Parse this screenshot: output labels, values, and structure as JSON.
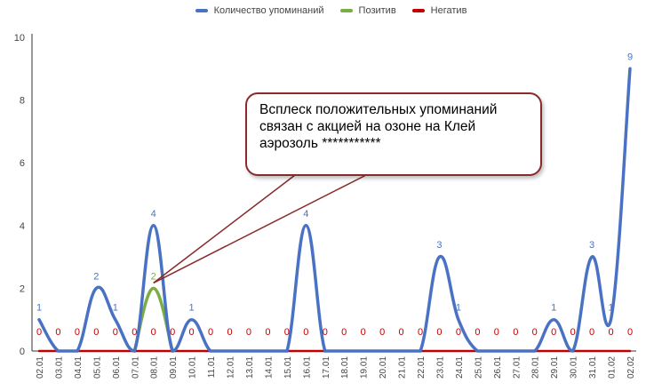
{
  "colors": {
    "mentions": "#4a72c4",
    "positive": "#7aae45",
    "negative": "#c00000",
    "callout_border": "#8b2a2a",
    "axis": "#333333"
  },
  "legend": {
    "mentions": "Количество упоминаний",
    "positive": "Позитив",
    "negative": "Негатив"
  },
  "callout": {
    "text": "Всплеск положительных упоминаний связан с акцией на озоне на Клей аэрозоль ***********"
  },
  "chart_data": {
    "type": "line",
    "smooth": true,
    "legend_position": "top-center",
    "grid": false,
    "categories": [
      "02.01",
      "03.01",
      "04.01",
      "05.01",
      "06.01",
      "07.01",
      "08.01",
      "09.01",
      "10.01",
      "11.01",
      "12.01",
      "13.01",
      "14.01",
      "15.01",
      "16.01",
      "17.01",
      "18.01",
      "19.01",
      "20.01",
      "21.01",
      "22.01",
      "23.01",
      "24.01",
      "25.01",
      "26.01",
      "27.01",
      "28.01",
      "29.01",
      "30.01",
      "31.01",
      "01.02",
      "02.02"
    ],
    "ylim": [
      0,
      10
    ],
    "yticks": [
      0,
      2,
      4,
      6,
      8,
      10
    ],
    "series": [
      {
        "name": "Количество упоминаний",
        "key": "mentions",
        "values": [
          1,
          0,
          0,
          2,
          1,
          0,
          4,
          0,
          1,
          0,
          0,
          0,
          0,
          0,
          4,
          0,
          0,
          0,
          0,
          0,
          0,
          3,
          1,
          0,
          0,
          0,
          0,
          1,
          0,
          3,
          1,
          9
        ],
        "labels": [
          1,
          null,
          null,
          2,
          1,
          null,
          4,
          null,
          1,
          null,
          null,
          null,
          null,
          null,
          4,
          null,
          null,
          null,
          null,
          null,
          null,
          3,
          1,
          null,
          null,
          null,
          null,
          1,
          null,
          3,
          1,
          9
        ]
      },
      {
        "name": "Позитив",
        "key": "positive",
        "values": [
          0,
          0,
          0,
          0,
          0,
          0,
          2,
          0,
          0,
          0,
          0,
          0,
          0,
          0,
          0,
          0,
          0,
          0,
          0,
          0,
          0,
          0,
          0,
          0,
          0,
          0,
          0,
          0,
          0,
          0,
          0,
          0
        ],
        "labels": [
          null,
          null,
          null,
          null,
          null,
          null,
          2,
          null,
          null,
          null,
          null,
          null,
          null,
          null,
          null,
          null,
          null,
          null,
          null,
          null,
          null,
          null,
          null,
          null,
          null,
          null,
          null,
          null,
          null,
          null,
          null,
          null
        ]
      },
      {
        "name": "Негатив",
        "key": "negative",
        "values": [
          0,
          0,
          0,
          0,
          0,
          0,
          0,
          0,
          0,
          0,
          0,
          0,
          0,
          0,
          0,
          0,
          0,
          0,
          0,
          0,
          0,
          0,
          0,
          0,
          0,
          0,
          0,
          0,
          0,
          0,
          0,
          0
        ],
        "labels": [
          0,
          0,
          0,
          0,
          0,
          0,
          0,
          0,
          0,
          0,
          0,
          0,
          0,
          0,
          0,
          0,
          0,
          0,
          0,
          0,
          0,
          0,
          0,
          0,
          0,
          0,
          0,
          0,
          0,
          0,
          0,
          0
        ]
      }
    ]
  }
}
